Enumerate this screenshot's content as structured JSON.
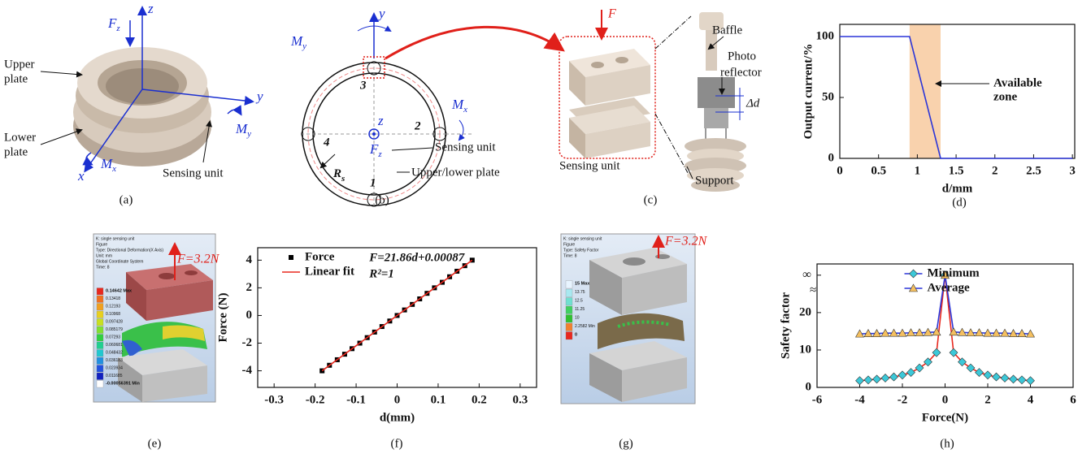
{
  "figure": {
    "a": {
      "z": "z",
      "fz": {
        "base": "F",
        "sub": "z"
      },
      "y": "y",
      "my": {
        "base": "M",
        "sub": "y"
      },
      "x": "x",
      "mx": {
        "base": "M",
        "sub": "x"
      },
      "upper_plate": [
        "Upper",
        "plate"
      ],
      "lower_plate": [
        "Lower",
        "plate"
      ],
      "sensing_unit": "Sensing unit"
    },
    "b": {
      "y": "y",
      "my": {
        "base": "M",
        "sub": "y"
      },
      "mx": {
        "base": "M",
        "sub": "x"
      },
      "z": "z",
      "fz": {
        "base": "F",
        "sub": "z"
      },
      "rs": {
        "base": "R",
        "sub": "s"
      },
      "units": [
        "1",
        "2",
        "3",
        "4"
      ],
      "sensing_unit": "Sensing unit",
      "plate": "Upper/lower plate"
    },
    "c": {
      "f": "F",
      "baffle": "Baffle",
      "photo_reflector": [
        "Photo",
        "reflector"
      ],
      "delta_d": "Δd",
      "sensing_unit": "Sensing unit",
      "support": "Support"
    },
    "e": {
      "info": [
        "K: single sensing unit",
        "Figure",
        "Type: Directional Deformation(X Axis)",
        "Unit: mm",
        "Global Coordinate System",
        "Time: 8"
      ],
      "legend": [
        "0.14642 Max",
        "0.13418",
        "0.12193",
        "0.10968",
        "0.097428",
        "0.085179",
        "0.07293",
        "0.060681",
        "0.048432",
        "0.036183",
        "0.023934",
        "0.011685",
        "-0.00056391 Min"
      ],
      "force": "F=3.2N"
    },
    "g": {
      "info": [
        "K: single sensing unit",
        "Figure",
        "Type: Safety Factor",
        "Time: 8"
      ],
      "legend": [
        "15 Max",
        "13.75",
        "12.5",
        "11.25",
        "10",
        "2.2582 Min",
        "0"
      ],
      "force": "F=3.2N"
    },
    "captions": [
      "(a)",
      "(b)",
      "(c)",
      "(d)",
      "(e)",
      "(f)",
      "(g)",
      "(h)"
    ]
  },
  "chart_data": [
    {
      "type": "line",
      "xlabel": "d/mm",
      "ylabel": "Output current/%",
      "xlim": [
        0,
        3.03
      ],
      "ylim": [
        0,
        110
      ],
      "xticks": [
        0,
        0.5,
        1,
        1.5,
        2,
        2.5,
        3
      ],
      "yticks": [
        0,
        50,
        100
      ],
      "zone": [
        0.9,
        1.3
      ],
      "zone_color": "#f9d2ad",
      "zone_label": [
        "Available",
        "zone"
      ],
      "series": [
        {
          "color": "#2b35d8",
          "x": [
            0,
            0.9,
            1.3,
            3
          ],
          "values": [
            100,
            100,
            0,
            0
          ]
        }
      ]
    },
    {
      "type": "scatter",
      "xlabel": "d(mm)",
      "ylabel": "Force (N)",
      "xlim": [
        -0.34,
        0.34
      ],
      "ylim": [
        -5.2,
        4.9
      ],
      "xticks": [
        -0.3,
        -0.2,
        -0.1,
        0,
        0.1,
        0.2,
        0.3
      ],
      "yticks": [
        -4,
        -2,
        0,
        2,
        4
      ],
      "legend": "upper left",
      "annotations": [
        "F=21.86d+0.00087",
        "R²=1"
      ],
      "series": [
        {
          "name": "Force",
          "color": "#000000",
          "line": false,
          "marker": "square",
          "x": [
            -0.183,
            -0.165,
            -0.146,
            -0.128,
            -0.11,
            -0.091,
            -0.073,
            -0.055,
            -0.037,
            -0.018,
            0.0,
            0.018,
            0.037,
            0.055,
            0.073,
            0.091,
            0.11,
            0.128,
            0.146,
            0.165,
            0.183
          ],
          "values": [
            -4,
            -3.6,
            -3.2,
            -2.8,
            -2.4,
            -2,
            -1.6,
            -1.2,
            -0.8,
            -0.4,
            0,
            0.4,
            0.8,
            1.2,
            1.6,
            2,
            2.4,
            2.8,
            3.2,
            3.6,
            4
          ]
        },
        {
          "name": "Linear fit",
          "color": "#e8281e",
          "x": [
            -0.183,
            0.183
          ],
          "values": [
            -4,
            4
          ]
        }
      ]
    },
    {
      "type": "line",
      "xlabel": "Force(N)",
      "ylabel": "Safety factor",
      "xlim": [
        -6,
        6
      ],
      "ylim": [
        0,
        33
      ],
      "xticks": [
        -6,
        -4,
        -2,
        0,
        2,
        4,
        6
      ],
      "yticks": [
        0,
        10,
        20,
        {
          "value": 30,
          "label": "∞"
        }
      ],
      "legend": "upper center",
      "x": [
        -4,
        -3.6,
        -3.2,
        -2.8,
        -2.4,
        -2,
        -1.6,
        -1.2,
        -0.8,
        -0.4,
        0,
        0.4,
        0.8,
        1.2,
        1.6,
        2,
        2.4,
        2.8,
        3.2,
        3.6,
        4
      ],
      "series": [
        {
          "name": "Minimum",
          "color": "#e8281e",
          "marker": "diamond",
          "marker_color": "#3cc8d8",
          "values": [
            1.8,
            2.0,
            2.2,
            2.5,
            2.8,
            3.3,
            4.0,
            5.2,
            6.8,
            9.3,
            30,
            9.3,
            6.8,
            5.2,
            4.0,
            3.3,
            2.8,
            2.5,
            2.2,
            2.0,
            1.8
          ]
        },
        {
          "name": "Average",
          "color": "#2b35d8",
          "marker": "triangle",
          "marker_color": "#f5c060",
          "values": [
            14.3,
            14.4,
            14.4,
            14.5,
            14.5,
            14.5,
            14.6,
            14.6,
            14.7,
            14.8,
            30,
            14.8,
            14.7,
            14.6,
            14.6,
            14.5,
            14.5,
            14.5,
            14.4,
            14.4,
            14.3
          ]
        }
      ]
    }
  ]
}
